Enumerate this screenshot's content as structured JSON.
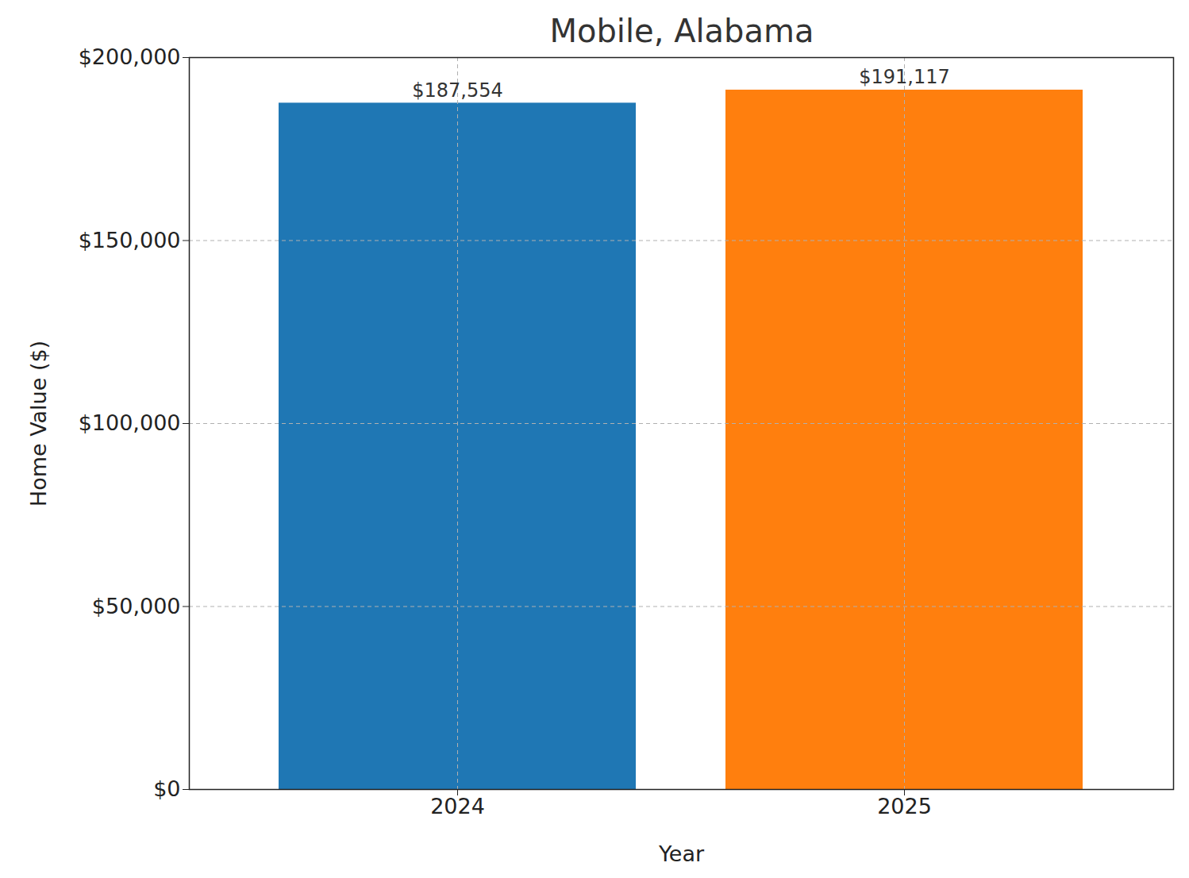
{
  "chart_data": {
    "type": "bar",
    "title": "Mobile, Alabama",
    "x_label": "Year",
    "y_label": "Home Value ($)",
    "categories": [
      "2024",
      "2025"
    ],
    "values": [
      187554,
      191117
    ],
    "value_labels": [
      "$187,554",
      "$191,117"
    ],
    "colors": [
      "#1f77b4",
      "#ff7f0e"
    ],
    "ylim": [
      0,
      200000
    ],
    "yticks": [
      {
        "value": 0,
        "label": "$0"
      },
      {
        "value": 50000,
        "label": "$50,000"
      },
      {
        "value": 100000,
        "label": "$100,000"
      },
      {
        "value": 150000,
        "label": "$150,000"
      },
      {
        "value": 200000,
        "label": "$200,000"
      }
    ],
    "grid": true,
    "data_labels": true
  }
}
